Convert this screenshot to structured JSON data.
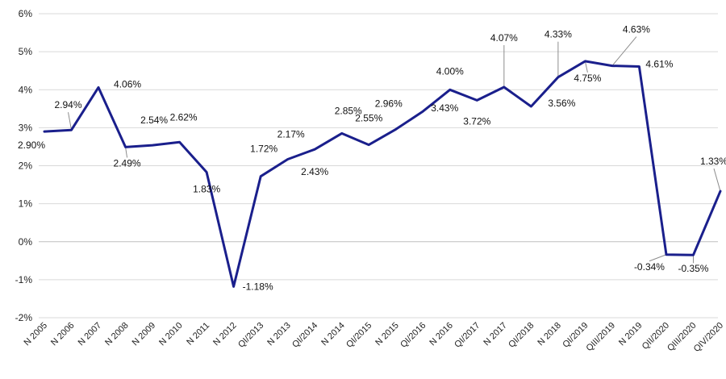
{
  "chart_data": {
    "type": "line",
    "title": "",
    "xlabel": "",
    "ylabel": "",
    "ylim": [
      -2,
      6
    ],
    "y_ticks": [
      "-2%",
      "-1%",
      "0%",
      "1%",
      "2%",
      "3%",
      "4%",
      "5%",
      "6%"
    ],
    "grid": "horizontal",
    "legend": "none",
    "line_color": "#1a1f8c",
    "categories": [
      "N 2005",
      "N 2006",
      "N 2007",
      "N 2008",
      "N 2009",
      "N 2010",
      "N 2011",
      "N 2012",
      "QI/2013",
      "N 2013",
      "QI/2014",
      "N 2014",
      "QI/2015",
      "N 2015",
      "QI/2016",
      "N 2016",
      "QI/2017",
      "N 2017",
      "QI/2018",
      "N 2018",
      "QI/2019",
      "QIII/2019",
      "N 2019",
      "QII/2020",
      "QIII/2020",
      "QIV/2020"
    ],
    "values": [
      2.9,
      2.94,
      4.06,
      2.49,
      2.54,
      2.62,
      1.83,
      -1.18,
      1.72,
      2.17,
      2.43,
      2.85,
      2.55,
      2.96,
      3.43,
      4.0,
      3.72,
      4.07,
      3.56,
      4.33,
      4.75,
      4.63,
      4.61,
      -0.34,
      -0.35,
      1.33
    ],
    "data_labels": [
      "2.90%",
      "2.94%",
      "4.06%",
      "2.49%",
      "2.54%",
      "2.62%",
      "1.83%",
      "-1.18%",
      "1.72%",
      "2.17%",
      "2.43%",
      "2.85%",
      "2.55%",
      "2.96%",
      "3.43%",
      "4.00%",
      "3.72%",
      "4.07%",
      "3.56%",
      "4.33%",
      "4.75%",
      "4.63%",
      "4.61%",
      "-0.34%",
      "-0.35%",
      "1.33%"
    ]
  }
}
